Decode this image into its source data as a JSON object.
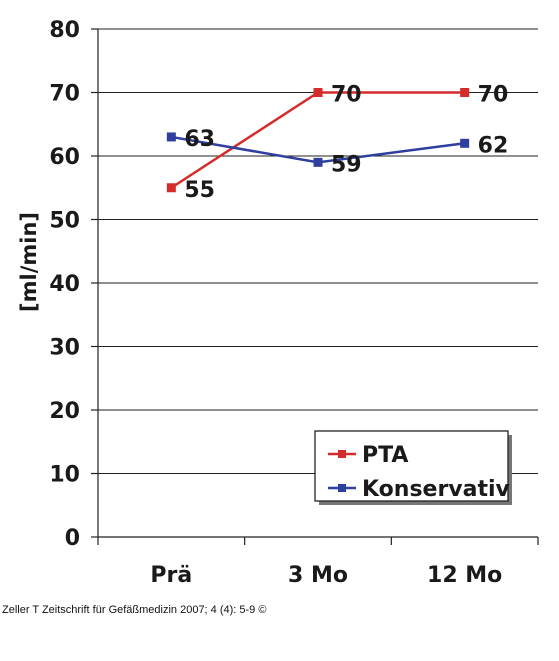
{
  "chart_data": {
    "type": "line",
    "categories": [
      "Prä",
      "3 Mo",
      "12 Mo"
    ],
    "ylabel": "[ml/min]",
    "ylim": [
      0,
      80
    ],
    "yticks": [
      "0",
      "10",
      "20",
      "30",
      "40",
      "50",
      "60",
      "70",
      "80"
    ],
    "grid": true,
    "legend_position": "bottom-right",
    "series": [
      {
        "name": "PTA",
        "color": "#d42b2b",
        "values": [
          55,
          70,
          70
        ],
        "labels": [
          "55",
          "70",
          "70"
        ]
      },
      {
        "name": "Konservativ",
        "color": "#2e3f9e",
        "values": [
          63,
          59,
          62
        ],
        "labels": [
          "63",
          "59",
          "62"
        ]
      }
    ]
  },
  "caption": "Zeller T Zeitschrift für Gefäßmedizin 2007; 4 (4): 5-9 ©"
}
